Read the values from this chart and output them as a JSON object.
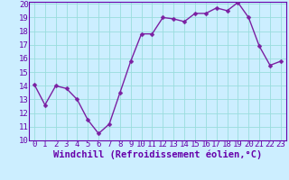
{
  "x": [
    0,
    1,
    2,
    3,
    4,
    5,
    6,
    7,
    8,
    9,
    10,
    11,
    12,
    13,
    14,
    15,
    16,
    17,
    18,
    19,
    20,
    21,
    22,
    23
  ],
  "y": [
    14.1,
    12.6,
    14.0,
    13.8,
    13.0,
    11.5,
    10.5,
    11.2,
    13.5,
    15.8,
    17.8,
    17.8,
    19.0,
    18.9,
    18.7,
    19.3,
    19.3,
    19.7,
    19.5,
    20.1,
    19.0,
    16.9,
    15.5,
    15.8
  ],
  "line_color": "#7B1FA2",
  "marker_color": "#7B1FA2",
  "bg_color": "#cceeff",
  "grid_color": "#99dddd",
  "xlabel": "Windchill (Refroidissement éolien,°C)",
  "ylabel": "",
  "ylim": [
    10,
    20
  ],
  "xlim_min": -0.5,
  "xlim_max": 23.5,
  "yticks": [
    10,
    11,
    12,
    13,
    14,
    15,
    16,
    17,
    18,
    19,
    20
  ],
  "xticks": [
    0,
    1,
    2,
    3,
    4,
    5,
    6,
    7,
    8,
    9,
    10,
    11,
    12,
    13,
    14,
    15,
    16,
    17,
    18,
    19,
    20,
    21,
    22,
    23
  ],
  "tick_color": "#6600AA",
  "xlabel_color": "#6600AA",
  "spine_color": "#6600AA",
  "xlabel_fontsize": 7.5,
  "tick_fontsize": 6.5,
  "linewidth": 1.0,
  "markersize": 2.5
}
